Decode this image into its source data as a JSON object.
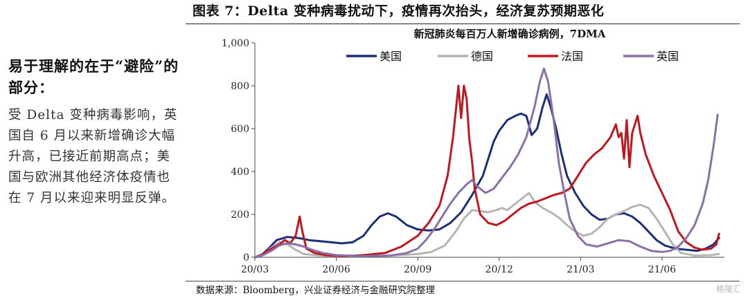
{
  "sidebar": {
    "heading": "易于理解的在于“避险”的部分：",
    "body": "受 Delta 变种病毒影响，英国自 6 月以来新增确诊大幅升高，已接近前期高点；美国与欧洲其他经济体疫情也在 7 月以来迎来明显反弹。"
  },
  "figure": {
    "title": "图表 7：Delta 变种病毒扰动下，疫情再次抬头，经济复苏预期恶化",
    "source": "数据来源：Bloomberg，兴业证券经济与金融研究院整理",
    "watermark": "格隆汇"
  },
  "chart_data": {
    "type": "line",
    "title": "新冠肺炎每百万人新增确诊病例，7DMA",
    "xlabel": "",
    "ylabel": "",
    "xlim": [
      0,
      17.3
    ],
    "ylim": [
      0,
      1000
    ],
    "x_ticks": [
      {
        "x": 0,
        "label": "20/03"
      },
      {
        "x": 3,
        "label": "20/06"
      },
      {
        "x": 6,
        "label": "20/09"
      },
      {
        "x": 9,
        "label": "20/12"
      },
      {
        "x": 12,
        "label": "21/03"
      },
      {
        "x": 15,
        "label": "21/06"
      }
    ],
    "y_ticks": [
      {
        "y": 0,
        "label": "0"
      },
      {
        "y": 200,
        "label": "200"
      },
      {
        "y": 400,
        "label": "400"
      },
      {
        "y": 600,
        "label": "600"
      },
      {
        "y": 800,
        "label": "800"
      },
      {
        "y": 1000,
        "label": "1,000"
      }
    ],
    "grid": false,
    "legend_position": "top",
    "series": [
      {
        "name": "美国",
        "color": "#1c2e7a",
        "points": [
          [
            0,
            0
          ],
          [
            0.2,
            5
          ],
          [
            0.5,
            40
          ],
          [
            0.8,
            80
          ],
          [
            1.2,
            95
          ],
          [
            1.6,
            90
          ],
          [
            2,
            80
          ],
          [
            2.4,
            75
          ],
          [
            2.8,
            70
          ],
          [
            3.2,
            65
          ],
          [
            3.6,
            70
          ],
          [
            4,
            100
          ],
          [
            4.3,
            150
          ],
          [
            4.6,
            190
          ],
          [
            4.9,
            205
          ],
          [
            5.2,
            190
          ],
          [
            5.6,
            150
          ],
          [
            6,
            130
          ],
          [
            6.4,
            125
          ],
          [
            6.8,
            130
          ],
          [
            7.2,
            160
          ],
          [
            7.6,
            210
          ],
          [
            8,
            290
          ],
          [
            8.4,
            380
          ],
          [
            8.6,
            460
          ],
          [
            8.8,
            540
          ],
          [
            9,
            590
          ],
          [
            9.3,
            640
          ],
          [
            9.6,
            660
          ],
          [
            9.8,
            670
          ],
          [
            10,
            660
          ],
          [
            10.2,
            570
          ],
          [
            10.4,
            600
          ],
          [
            10.6,
            700
          ],
          [
            10.75,
            760
          ],
          [
            10.9,
            700
          ],
          [
            11.1,
            600
          ],
          [
            11.3,
            480
          ],
          [
            11.5,
            380
          ],
          [
            11.8,
            300
          ],
          [
            12.1,
            240
          ],
          [
            12.4,
            200
          ],
          [
            12.7,
            175
          ],
          [
            13,
            180
          ],
          [
            13.3,
            200
          ],
          [
            13.6,
            205
          ],
          [
            13.9,
            190
          ],
          [
            14.2,
            160
          ],
          [
            14.5,
            120
          ],
          [
            14.8,
            80
          ],
          [
            15.1,
            55
          ],
          [
            15.5,
            40
          ],
          [
            15.9,
            35
          ],
          [
            16.3,
            30
          ],
          [
            16.6,
            40
          ],
          [
            16.9,
            60
          ],
          [
            17.1,
            90
          ]
        ]
      },
      {
        "name": "德国",
        "color": "#b4b4b4",
        "points": [
          [
            0,
            0
          ],
          [
            0.3,
            10
          ],
          [
            0.6,
            45
          ],
          [
            0.9,
            70
          ],
          [
            1.2,
            60
          ],
          [
            1.5,
            35
          ],
          [
            1.8,
            15
          ],
          [
            2.4,
            8
          ],
          [
            3,
            5
          ],
          [
            4,
            6
          ],
          [
            5,
            8
          ],
          [
            6,
            15
          ],
          [
            6.5,
            25
          ],
          [
            7,
            55
          ],
          [
            7.4,
            120
          ],
          [
            7.7,
            180
          ],
          [
            8,
            220
          ],
          [
            8.3,
            215
          ],
          [
            8.6,
            210
          ],
          [
            8.9,
            220
          ],
          [
            9.1,
            230
          ],
          [
            9.3,
            220
          ],
          [
            9.6,
            250
          ],
          [
            9.9,
            280
          ],
          [
            10.1,
            300
          ],
          [
            10.3,
            260
          ],
          [
            10.6,
            230
          ],
          [
            10.9,
            210
          ],
          [
            11.2,
            185
          ],
          [
            11.5,
            150
          ],
          [
            11.8,
            120
          ],
          [
            12.1,
            100
          ],
          [
            12.4,
            110
          ],
          [
            12.7,
            140
          ],
          [
            13,
            180
          ],
          [
            13.3,
            200
          ],
          [
            13.6,
            215
          ],
          [
            13.9,
            235
          ],
          [
            14.2,
            245
          ],
          [
            14.5,
            230
          ],
          [
            14.8,
            180
          ],
          [
            15.1,
            120
          ],
          [
            15.4,
            60
          ],
          [
            15.7,
            20
          ],
          [
            16.2,
            8
          ],
          [
            16.8,
            10
          ],
          [
            17.1,
            15
          ]
        ]
      },
      {
        "name": "法国",
        "color": "#c0161d",
        "points": [
          [
            0,
            0
          ],
          [
            0.3,
            15
          ],
          [
            0.6,
            40
          ],
          [
            0.9,
            60
          ],
          [
            1.1,
            80
          ],
          [
            1.3,
            65
          ],
          [
            1.5,
            100
          ],
          [
            1.65,
            190
          ],
          [
            1.75,
            120
          ],
          [
            1.9,
            40
          ],
          [
            2.2,
            20
          ],
          [
            2.6,
            10
          ],
          [
            3.2,
            5
          ],
          [
            4,
            10
          ],
          [
            4.8,
            20
          ],
          [
            5.4,
            50
          ],
          [
            6,
            100
          ],
          [
            6.4,
            160
          ],
          [
            6.8,
            240
          ],
          [
            7.1,
            380
          ],
          [
            7.3,
            560
          ],
          [
            7.5,
            800
          ],
          [
            7.6,
            650
          ],
          [
            7.7,
            800
          ],
          [
            7.8,
            740
          ],
          [
            7.9,
            550
          ],
          [
            8,
            450
          ],
          [
            8.1,
            320
          ],
          [
            8.3,
            200
          ],
          [
            8.6,
            160
          ],
          [
            8.9,
            150
          ],
          [
            9.2,
            170
          ],
          [
            9.5,
            200
          ],
          [
            9.8,
            230
          ],
          [
            10.1,
            250
          ],
          [
            10.4,
            260
          ],
          [
            10.7,
            275
          ],
          [
            11,
            290
          ],
          [
            11.3,
            300
          ],
          [
            11.6,
            320
          ],
          [
            11.9,
            380
          ],
          [
            12.2,
            440
          ],
          [
            12.5,
            480
          ],
          [
            12.8,
            510
          ],
          [
            13.1,
            560
          ],
          [
            13.3,
            620
          ],
          [
            13.4,
            560
          ],
          [
            13.5,
            580
          ],
          [
            13.6,
            460
          ],
          [
            13.7,
            640
          ],
          [
            13.8,
            420
          ],
          [
            13.9,
            580
          ],
          [
            14,
            620
          ],
          [
            14.1,
            660
          ],
          [
            14.2,
            580
          ],
          [
            14.4,
            480
          ],
          [
            14.7,
            380
          ],
          [
            15,
            300
          ],
          [
            15.3,
            220
          ],
          [
            15.6,
            120
          ],
          [
            15.9,
            70
          ],
          [
            16.2,
            45
          ],
          [
            16.5,
            35
          ],
          [
            16.8,
            40
          ],
          [
            17,
            60
          ],
          [
            17.1,
            110
          ]
        ]
      },
      {
        "name": "英国",
        "color": "#8b6fa8",
        "points": [
          [
            0,
            0
          ],
          [
            0.3,
            10
          ],
          [
            0.6,
            30
          ],
          [
            0.9,
            55
          ],
          [
            1.2,
            65
          ],
          [
            1.5,
            60
          ],
          [
            1.8,
            50
          ],
          [
            2.1,
            35
          ],
          [
            2.5,
            20
          ],
          [
            3,
            10
          ],
          [
            4,
            5
          ],
          [
            5,
            8
          ],
          [
            5.6,
            20
          ],
          [
            6,
            40
          ],
          [
            6.3,
            80
          ],
          [
            6.6,
            130
          ],
          [
            6.9,
            190
          ],
          [
            7.2,
            250
          ],
          [
            7.5,
            300
          ],
          [
            7.8,
            340
          ],
          [
            8,
            360
          ],
          [
            8.2,
            330
          ],
          [
            8.5,
            300
          ],
          [
            8.8,
            320
          ],
          [
            9.1,
            370
          ],
          [
            9.4,
            420
          ],
          [
            9.7,
            480
          ],
          [
            10,
            560
          ],
          [
            10.3,
            700
          ],
          [
            10.5,
            820
          ],
          [
            10.65,
            880
          ],
          [
            10.8,
            820
          ],
          [
            11,
            650
          ],
          [
            11.2,
            440
          ],
          [
            11.4,
            300
          ],
          [
            11.6,
            180
          ],
          [
            11.9,
            100
          ],
          [
            12.2,
            60
          ],
          [
            12.6,
            50
          ],
          [
            13,
            65
          ],
          [
            13.4,
            80
          ],
          [
            13.8,
            75
          ],
          [
            14.2,
            50
          ],
          [
            14.6,
            30
          ],
          [
            15,
            25
          ],
          [
            15.3,
            30
          ],
          [
            15.6,
            50
          ],
          [
            15.9,
            90
          ],
          [
            16.2,
            150
          ],
          [
            16.5,
            250
          ],
          [
            16.7,
            360
          ],
          [
            16.9,
            520
          ],
          [
            17.05,
            665
          ]
        ]
      }
    ]
  }
}
